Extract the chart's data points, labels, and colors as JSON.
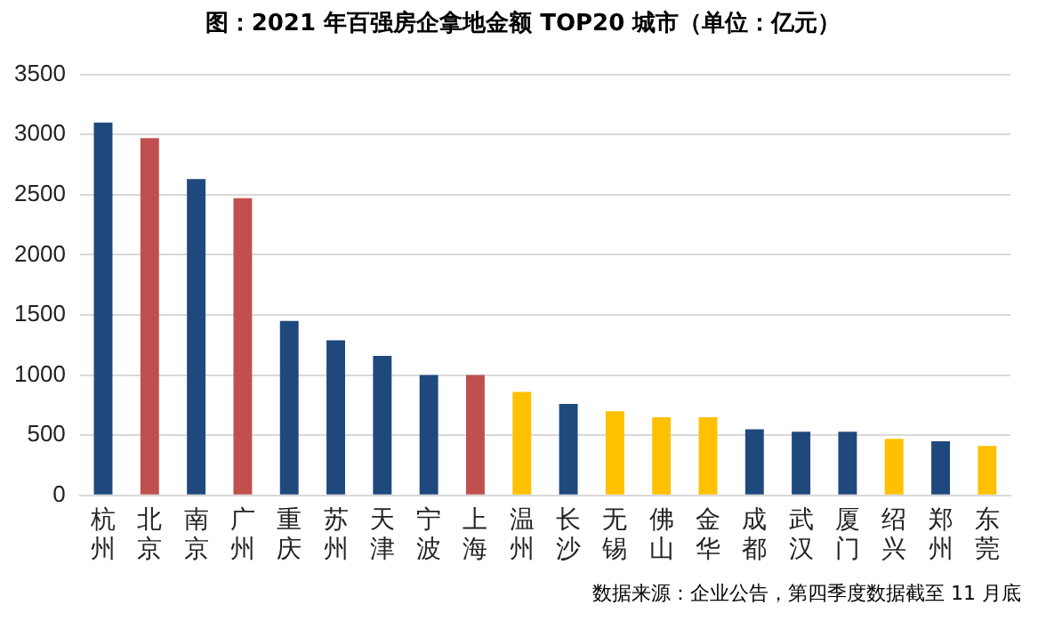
{
  "chart_data": {
    "type": "bar",
    "title": "图：2021 年百强房企拿地金额 TOP20 城市（单位：亿元）",
    "categories": [
      "杭州",
      "北京",
      "南京",
      "广州",
      "重庆",
      "苏州",
      "天津",
      "宁波",
      "上海",
      "温州",
      "长沙",
      "无锡",
      "佛山",
      "金华",
      "成都",
      "武汉",
      "厦门",
      "绍兴",
      "郑州",
      "东莞"
    ],
    "values": [
      3100,
      2970,
      2630,
      2470,
      1450,
      1290,
      1160,
      1000,
      1000,
      860,
      760,
      700,
      650,
      650,
      550,
      530,
      530,
      470,
      450,
      410
    ],
    "colors": [
      "#1f497d",
      "#c0504d",
      "#1f497d",
      "#c0504d",
      "#1f497d",
      "#1f497d",
      "#1f497d",
      "#1f497d",
      "#c0504d",
      "#ffc000",
      "#1f497d",
      "#ffc000",
      "#ffc000",
      "#ffc000",
      "#1f497d",
      "#1f497d",
      "#1f497d",
      "#ffc000",
      "#1f497d",
      "#ffc000"
    ],
    "ylim": [
      0,
      3500
    ],
    "yticks": [
      0,
      500,
      1000,
      1500,
      2000,
      2500,
      3000,
      3500
    ],
    "grid": "y",
    "annotations": [
      "数据来源：企业公告，第四季度数据截至 11 月底"
    ]
  }
}
